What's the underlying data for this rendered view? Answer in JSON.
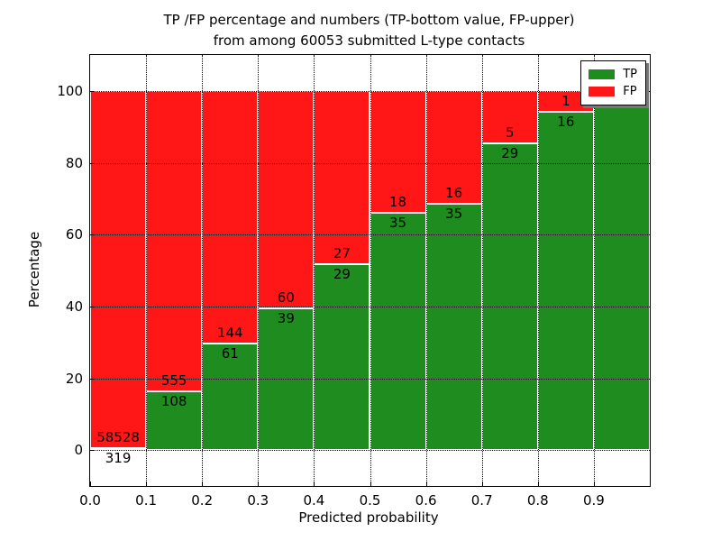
{
  "title": {
    "line1": "TP /FP percentage and numbers (TP-bottom value, FP-upper)",
    "line2": "from among 60053 submitted L-type contacts"
  },
  "axes": {
    "xlabel": "Predicted probability",
    "ylabel": "Percentage",
    "x_ticks": [
      "0.0",
      "0.1",
      "0.2",
      "0.3",
      "0.4",
      "0.5",
      "0.6",
      "0.7",
      "0.8",
      "0.9"
    ],
    "y_ticks": [
      "0",
      "20",
      "40",
      "60",
      "80",
      "100"
    ]
  },
  "legend": {
    "items": [
      {
        "label": "TP",
        "color": "#1e8c1e"
      },
      {
        "label": "FP",
        "color": "#ff1616"
      }
    ]
  },
  "chart_data": {
    "type": "bar",
    "stacked": true,
    "title": "TP /FP percentage and numbers (TP-bottom value, FP-upper) from among 60053 submitted L-type contacts",
    "xlabel": "Predicted probability",
    "ylabel": "Percentage",
    "x_bin_edges": [
      0.0,
      0.1,
      0.2,
      0.3,
      0.4,
      0.5,
      0.6,
      0.7,
      0.8,
      0.9,
      1.0
    ],
    "categories": [
      "0.0-0.1",
      "0.1-0.2",
      "0.2-0.3",
      "0.3-0.4",
      "0.4-0.5",
      "0.5-0.6",
      "0.6-0.7",
      "0.7-0.8",
      "0.8-0.9",
      "0.9-1.0"
    ],
    "series": [
      {
        "name": "TP",
        "color": "#1e8c1e",
        "counts": [
          319,
          108,
          61,
          39,
          29,
          35,
          35,
          29,
          16,
          28
        ],
        "percentages": [
          0.5,
          16.3,
          29.8,
          39.4,
          51.8,
          66.0,
          68.6,
          85.3,
          94.1,
          100.0
        ]
      },
      {
        "name": "FP",
        "color": "#ff1616",
        "counts": [
          58528,
          555,
          144,
          60,
          27,
          18,
          16,
          5,
          1,
          null
        ],
        "percentages": [
          99.5,
          83.7,
          70.2,
          60.6,
          48.2,
          34.0,
          31.4,
          14.7,
          5.9,
          0.0
        ]
      }
    ],
    "visible_labels": {
      "tp": [
        "319",
        "108",
        "61",
        "39",
        "29",
        "35",
        "35",
        "29",
        "16",
        "28"
      ],
      "fp": [
        "58528",
        "555",
        "144",
        "60",
        "27",
        "18",
        "16",
        "5",
        "1",
        ""
      ]
    },
    "xlim": [
      0.0,
      1.0
    ],
    "ylim": [
      -10,
      110
    ],
    "grid": true,
    "grid_style": "dotted",
    "legend_position": "upper right"
  }
}
